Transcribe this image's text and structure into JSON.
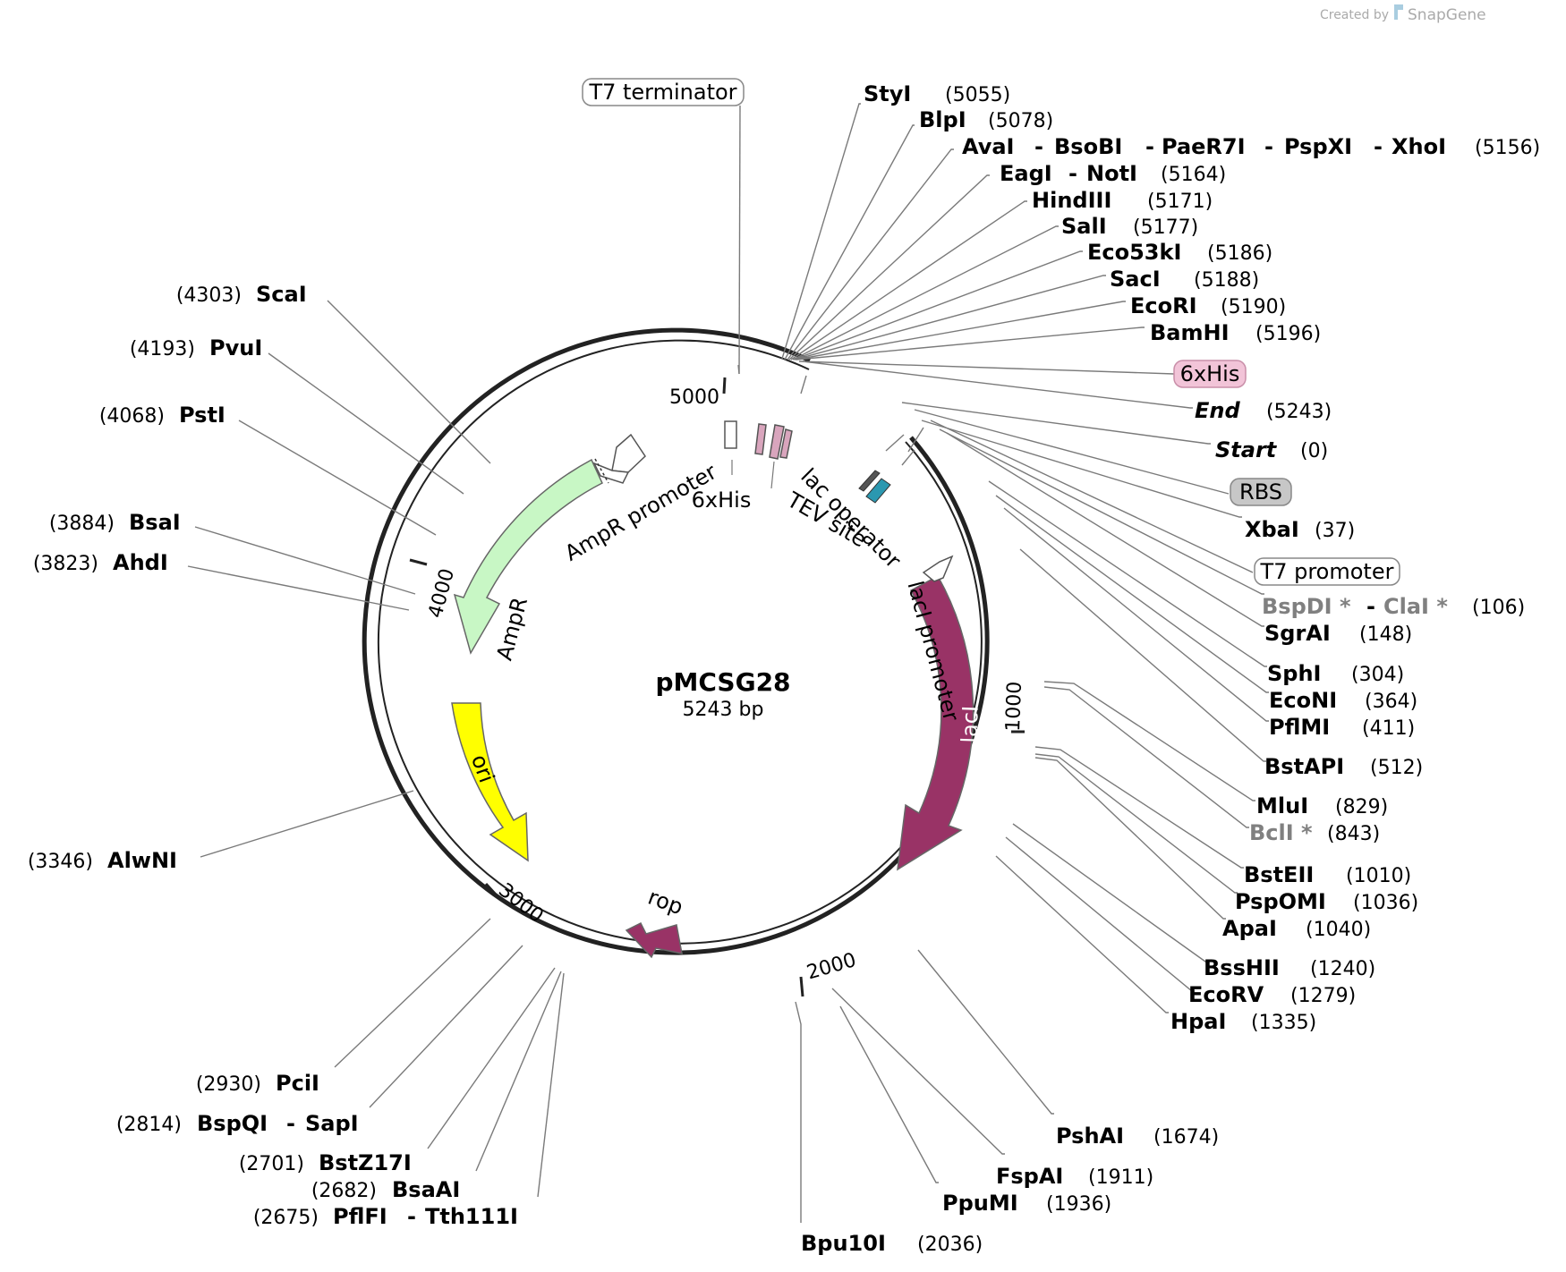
{
  "credit": {
    "prefix": "Created by",
    "brand": "SnapGene"
  },
  "plasmid": {
    "name": "pMCSG28",
    "length_label": "5243 bp"
  },
  "ticks": [
    {
      "label": "1000",
      "pos": 1000
    },
    {
      "label": "2000",
      "pos": 2000
    },
    {
      "label": "3000",
      "pos": 3000
    },
    {
      "label": "4000",
      "pos": 4000
    },
    {
      "label": "5000",
      "pos": 5000
    }
  ],
  "features": [
    {
      "name": "AmpR promoter",
      "color": "#ffffff"
    },
    {
      "name": "AmpR",
      "color": "#c8f7c5"
    },
    {
      "name": "ori",
      "color": "#ffff00"
    },
    {
      "name": "rop",
      "color": "#993366"
    },
    {
      "name": "lacI",
      "color": "#993366"
    },
    {
      "name": "lacI promoter",
      "color": "#ffffff"
    },
    {
      "name": "lac operator",
      "color": "#2b98b0"
    },
    {
      "name": "TEV site",
      "color": "#d9a5bd"
    },
    {
      "name": "6xHis",
      "color": "#d9a5bd"
    }
  ],
  "boxed_features": [
    {
      "name": "T7 terminator",
      "bg": "#ffffff"
    },
    {
      "name": "6xHis",
      "bg": "#f2c4d8"
    },
    {
      "name": "RBS",
      "bg": "#c7c7c7"
    },
    {
      "name": "T7 promoter",
      "bg": "#ffffff"
    }
  ],
  "sites_right": [
    {
      "names": [
        "StyI"
      ],
      "pos": "(5055)"
    },
    {
      "names": [
        "BlpI"
      ],
      "pos": "(5078)"
    },
    {
      "names": [
        "AvaI",
        "BsoBI",
        "PaeR7I",
        "PspXI",
        "XhoI"
      ],
      "pos": "(5156)"
    },
    {
      "names": [
        "EagI",
        "NotI"
      ],
      "pos": "(5164)"
    },
    {
      "names": [
        "HindIII"
      ],
      "pos": "(5171)"
    },
    {
      "names": [
        "SalI"
      ],
      "pos": "(5177)"
    },
    {
      "names": [
        "Eco53kI"
      ],
      "pos": "(5186)"
    },
    {
      "names": [
        "SacI"
      ],
      "pos": "(5188)"
    },
    {
      "names": [
        "EcoRI"
      ],
      "pos": "(5190)"
    },
    {
      "names": [
        "BamHI"
      ],
      "pos": "(5196)"
    },
    {
      "names": [
        "End"
      ],
      "pos": "(5243)",
      "italic": true
    },
    {
      "names": [
        "Start"
      ],
      "pos": "(0)",
      "italic": true
    },
    {
      "names": [
        "XbaI"
      ],
      "pos": "(37)"
    },
    {
      "names": [
        "BspDI *",
        "ClaI *"
      ],
      "pos": "(106)",
      "dim": true
    },
    {
      "names": [
        "SgrAI"
      ],
      "pos": "(148)"
    },
    {
      "names": [
        "SphI"
      ],
      "pos": "(304)"
    },
    {
      "names": [
        "EcoNI"
      ],
      "pos": "(364)"
    },
    {
      "names": [
        "PflMI"
      ],
      "pos": "(411)"
    },
    {
      "names": [
        "BstAPI"
      ],
      "pos": "(512)"
    },
    {
      "names": [
        "MluI"
      ],
      "pos": "(829)"
    },
    {
      "names": [
        "BclI *"
      ],
      "pos": "(843)",
      "dim": true
    },
    {
      "names": [
        "BstEII"
      ],
      "pos": "(1010)"
    },
    {
      "names": [
        "PspOMI"
      ],
      "pos": "(1036)"
    },
    {
      "names": [
        "ApaI"
      ],
      "pos": "(1040)"
    },
    {
      "names": [
        "BssHII"
      ],
      "pos": "(1240)"
    },
    {
      "names": [
        "EcoRV"
      ],
      "pos": "(1279)"
    },
    {
      "names": [
        "HpaI"
      ],
      "pos": "(1335)"
    },
    {
      "names": [
        "PshAI"
      ],
      "pos": "(1674)"
    },
    {
      "names": [
        "FspAI"
      ],
      "pos": "(1911)"
    },
    {
      "names": [
        "PpuMI"
      ],
      "pos": "(1936)"
    },
    {
      "names": [
        "Bpu10I"
      ],
      "pos": "(2036)"
    }
  ],
  "sites_left": [
    {
      "names": [
        "ScaI"
      ],
      "pos": "(4303)"
    },
    {
      "names": [
        "PvuI"
      ],
      "pos": "(4193)"
    },
    {
      "names": [
        "PstI"
      ],
      "pos": "(4068)"
    },
    {
      "names": [
        "BsaI"
      ],
      "pos": "(3884)"
    },
    {
      "names": [
        "AhdI"
      ],
      "pos": "(3823)"
    },
    {
      "names": [
        "AlwNI"
      ],
      "pos": "(3346)"
    },
    {
      "names": [
        "PciI"
      ],
      "pos": "(2930)"
    },
    {
      "names": [
        "BspQI",
        "SapI"
      ],
      "pos": "(2814)"
    },
    {
      "names": [
        "BstZ17I"
      ],
      "pos": "(2701)"
    },
    {
      "names": [
        "BsaAI"
      ],
      "pos": "(2682)"
    },
    {
      "names": [
        "PflFI",
        "Tth111I"
      ],
      "pos": "(2675)"
    }
  ]
}
